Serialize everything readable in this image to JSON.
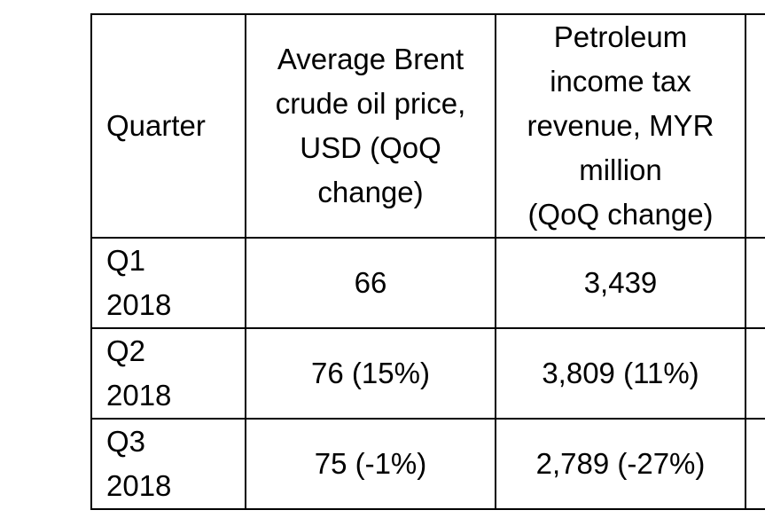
{
  "table": {
    "headers": [
      "Quarter",
      "Average Brent\ncrude oil price,\nUSD (QoQ\nchange)",
      "Petroleum\nincome tax\nrevenue, MYR\nmillion\n(QoQ change)",
      ""
    ],
    "rows": [
      {
        "quarter": "Q1\n2018",
        "brent": "66",
        "tax": "3,439",
        "extra": ""
      },
      {
        "quarter": "Q2\n2018",
        "brent": "76 (15%)",
        "tax": "3,809 (11%)",
        "extra": ""
      },
      {
        "quarter": "Q3\n2018",
        "brent": "75 (-1%)",
        "tax": "2,789 (-27%)",
        "extra": ""
      }
    ]
  }
}
